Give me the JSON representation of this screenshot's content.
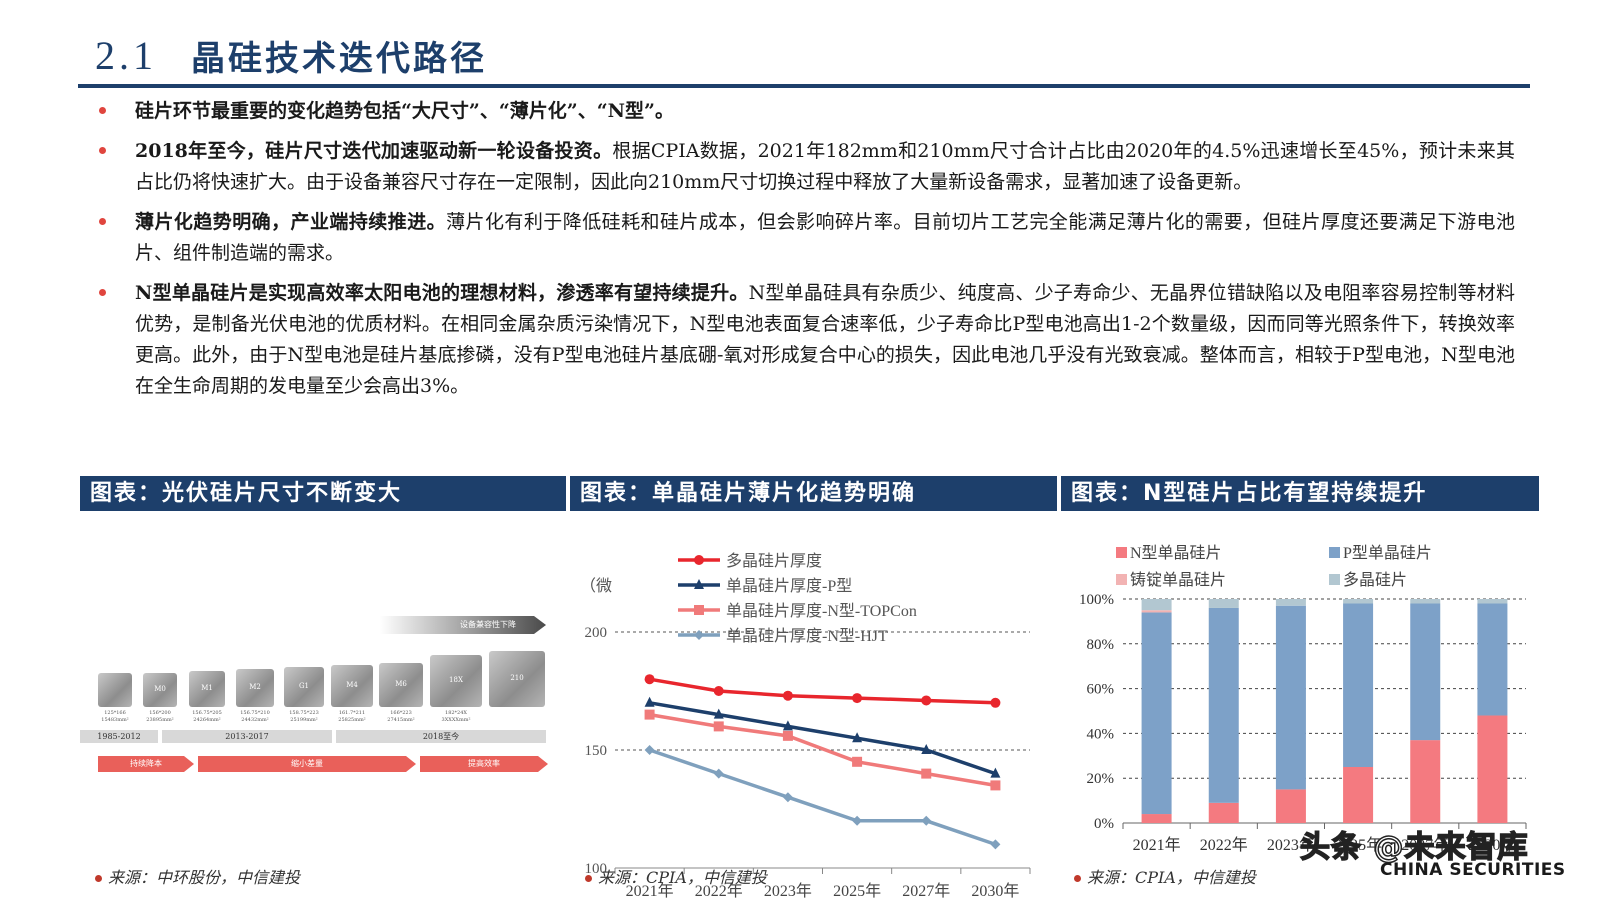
{
  "header": {
    "section_number": "2.1",
    "title": "晶硅技术迭代路径"
  },
  "bullets": [
    {
      "bold": "硅片环节最重要的变化趋势包括“大尺寸”、“薄片化”、“N型”。",
      "text": ""
    },
    {
      "bold": "2018年至今，硅片尺寸迭代加速驱动新一轮设备投资。",
      "text": "根据CPIA数据，2021年182mm和210mm尺寸合计占比由2020年的4.5%迅速增长至45%，预计未来其占比仍将快速扩大。由于设备兼容尺寸存在一定限制，因此向210mm尺寸切换过程中释放了大量新设备需求，显著加速了设备更新。"
    },
    {
      "bold": "薄片化趋势明确，产业端持续推进。",
      "text": "薄片化有利于降低硅耗和硅片成本，但会影响碎片率。目前切片工艺完全能满足薄片化的需要，但硅片厚度还要满足下游电池片、组件制造端的需求。"
    },
    {
      "bold": "N型单晶硅片是实现高效率太阳电池的理想材料，渗透率有望持续提升。",
      "text": "N型单晶硅具有杂质少、纯度高、少子寿命少、无晶界位错缺陷以及电阻率容易控制等材料优势，是制备光伏电池的优质材料。在相同金属杂质污染情况下，N型电池表面复合速率低，少子寿命比P型电池高出1-2个数量级，因而同等光照条件下，转换效率更高。此外，由于N型电池是硅片基底掺磷，没有P型电池硅片基底硼-氧对形成复合中心的损失，因此电池几乎没有光致衰减。整体而言，相较于P型电池，N型电池在全生命周期的发电量至少会高出3%。"
    }
  ],
  "panels": {
    "p1": {
      "title": "图表：光伏硅片尺寸不断变大",
      "source": "来源：中环股份，中信建投"
    },
    "p2": {
      "title": "图表：单晶硅片薄片化趋势明确",
      "source": "来源：CPIA，中信建投"
    },
    "p3": {
      "title": "图表：N型硅片占比有望持续提升",
      "source": "来源：CPIA，中信建投"
    }
  },
  "wafers": {
    "items": [
      {
        "label": "",
        "caption": "125*166\n15483mm²"
      },
      {
        "label": "M0",
        "caption": "156*200\n23895mm²"
      },
      {
        "label": "M1",
        "caption": "156.75*205\n24264mm²"
      },
      {
        "label": "M2",
        "caption": "156.75*210\n24432mm²"
      },
      {
        "label": "G1",
        "caption": "158.75*223\n25199mm²"
      },
      {
        "label": "M4",
        "caption": "161.7*211\n25825mm²"
      },
      {
        "label": "M6",
        "caption": "166*223\n27415mm²"
      },
      {
        "label": "18X",
        "caption": "182*24X\n3XXXXmm²"
      },
      {
        "label": "210",
        "caption": ""
      }
    ],
    "eras": [
      "1985-2012",
      "2013-2017",
      "2018至今"
    ],
    "arrows": [
      "持续降本",
      "缩小差量",
      "提高效率"
    ],
    "top_arrow": "设备兼容性下降"
  },
  "chart_data": [
    {
      "type": "line",
      "ylabel": "（微",
      "x": [
        "2021年",
        "2022年",
        "2023年",
        "2025年",
        "2027年",
        "2030年"
      ],
      "ylim": [
        100,
        200
      ],
      "yticks": [
        100,
        150,
        200
      ],
      "grid": true,
      "legend": "top",
      "series": [
        {
          "name": "多晶硅片厚度",
          "color": "#e8262d",
          "marker": "circle",
          "values": [
            180,
            175,
            173,
            172,
            171,
            170
          ]
        },
        {
          "name": "单晶硅片厚度-P型",
          "color": "#1d3f6b",
          "marker": "triangle",
          "values": [
            170,
            165,
            160,
            155,
            150,
            140
          ]
        },
        {
          "name": "单晶硅片厚度-N型-TOPCon",
          "color": "#f07a7a",
          "marker": "square",
          "values": [
            165,
            160,
            156,
            145,
            140,
            135
          ]
        },
        {
          "name": "单晶硅片厚度-N型-HJT",
          "color": "#7fa0bd",
          "marker": "diamond",
          "values": [
            150,
            140,
            130,
            120,
            120,
            110
          ]
        }
      ]
    },
    {
      "type": "bar",
      "stacked": true,
      "categories": [
        "2021年",
        "2022年",
        "2023年",
        "2025年",
        "2027年",
        "2030年"
      ],
      "ylim": [
        0,
        100
      ],
      "yticks": [
        "0%",
        "20%",
        "40%",
        "60%",
        "80%",
        "100%"
      ],
      "grid": true,
      "legend": "top",
      "series": [
        {
          "name": "N型单晶硅片",
          "color": "#f47a80",
          "values": [
            4,
            9,
            15,
            25,
            37,
            48
          ]
        },
        {
          "name": "P型单晶硅片",
          "color": "#7da1c8",
          "values": [
            90,
            87,
            82,
            73,
            61,
            50
          ]
        },
        {
          "name": "铸锭单晶硅片",
          "color": "#f2b3b3",
          "values": [
            1,
            0,
            0,
            0,
            0,
            0
          ]
        },
        {
          "name": "多晶硅片",
          "color": "#b2c7d1",
          "values": [
            5,
            4,
            3,
            2,
            2,
            2
          ]
        }
      ]
    }
  ],
  "footer": {
    "watermark": "头条 @未来智库",
    "brand": "CHINA SECURITIES"
  }
}
